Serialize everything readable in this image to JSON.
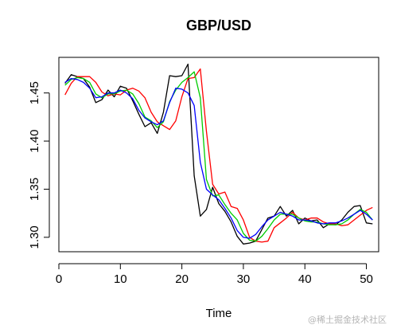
{
  "chart_data": {
    "type": "line",
    "title": "GBP/USD",
    "xlabel": "Time",
    "ylabel": "",
    "xlim": [
      0,
      52
    ],
    "ylim": [
      1.285,
      1.487
    ],
    "xticks": [
      0,
      10,
      20,
      30,
      40,
      50
    ],
    "yticks": [
      1.3,
      1.35,
      1.4,
      1.45
    ],
    "xtick_labels": [
      "0",
      "10",
      "20",
      "30",
      "40",
      "50"
    ],
    "ytick_labels": [
      "1.30",
      "1.35",
      "1.40",
      "1.45"
    ],
    "grid": false,
    "x": [
      1,
      2,
      3,
      4,
      5,
      6,
      7,
      8,
      9,
      10,
      11,
      12,
      13,
      14,
      15,
      16,
      17,
      18,
      19,
      20,
      21,
      22,
      23,
      24,
      25,
      26,
      27,
      28,
      29,
      30,
      31,
      32,
      33,
      34,
      35,
      36,
      37,
      38,
      39,
      40,
      41,
      42,
      43,
      44,
      45,
      46,
      47,
      48,
      49,
      50,
      51
    ],
    "series": [
      {
        "color": "#000000",
        "values": [
          1.46,
          1.469,
          1.467,
          1.465,
          1.456,
          1.44,
          1.443,
          1.453,
          1.446,
          1.457,
          1.455,
          1.442,
          1.428,
          1.415,
          1.419,
          1.408,
          1.43,
          1.468,
          1.467,
          1.468,
          1.48,
          1.364,
          1.322,
          1.329,
          1.352,
          1.335,
          1.327,
          1.316,
          1.301,
          1.293,
          1.294,
          1.296,
          1.308,
          1.32,
          1.322,
          1.332,
          1.322,
          1.328,
          1.314,
          1.32,
          1.317,
          1.318,
          1.31,
          1.314,
          1.313,
          1.318,
          1.326,
          1.332,
          1.333,
          1.315,
          1.314
        ]
      },
      {
        "color": "#ff0000",
        "values": [
          1.448,
          1.46,
          1.467,
          1.467,
          1.467,
          1.461,
          1.451,
          1.447,
          1.449,
          1.448,
          1.453,
          1.455,
          1.452,
          1.445,
          1.43,
          1.42,
          1.416,
          1.412,
          1.421,
          1.446,
          1.465,
          1.466,
          1.475,
          1.41,
          1.355,
          1.345,
          1.347,
          1.332,
          1.33,
          1.318,
          1.3,
          1.296,
          1.295,
          1.296,
          1.31,
          1.315,
          1.32,
          1.326,
          1.32,
          1.318,
          1.32,
          1.32,
          1.316,
          1.314,
          1.314,
          1.312,
          1.313,
          1.318,
          1.323,
          1.328,
          1.331
        ]
      },
      {
        "color": "#00cc00",
        "values": [
          1.458,
          1.464,
          1.466,
          1.465,
          1.461,
          1.449,
          1.445,
          1.449,
          1.449,
          1.452,
          1.453,
          1.449,
          1.439,
          1.425,
          1.421,
          1.414,
          1.42,
          1.441,
          1.453,
          1.461,
          1.466,
          1.472,
          1.445,
          1.36,
          1.343,
          1.344,
          1.334,
          1.325,
          1.318,
          1.304,
          1.297,
          1.296,
          1.301,
          1.309,
          1.318,
          1.324,
          1.324,
          1.324,
          1.32,
          1.317,
          1.316,
          1.316,
          1.314,
          1.313,
          1.313,
          1.314,
          1.318,
          1.324,
          1.329,
          1.326,
          1.318
        ]
      },
      {
        "color": "#0000ff",
        "values": [
          1.461,
          1.465,
          1.464,
          1.461,
          1.455,
          1.445,
          1.446,
          1.45,
          1.45,
          1.453,
          1.45,
          1.444,
          1.432,
          1.424,
          1.42,
          1.417,
          1.421,
          1.44,
          1.455,
          1.454,
          1.45,
          1.437,
          1.378,
          1.35,
          1.344,
          1.339,
          1.33,
          1.32,
          1.307,
          1.3,
          1.299,
          1.303,
          1.311,
          1.318,
          1.322,
          1.326,
          1.324,
          1.322,
          1.318,
          1.318,
          1.317,
          1.315,
          1.314,
          1.315,
          1.315,
          1.317,
          1.32,
          1.324,
          1.328,
          1.324,
          1.318
        ]
      }
    ]
  },
  "watermark": "@稀土掘金技术社区"
}
